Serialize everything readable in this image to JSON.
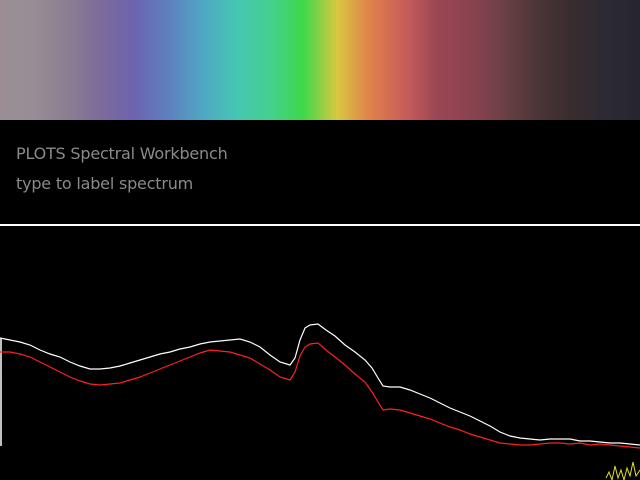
{
  "header": {
    "title": "PLOTS Spectral Workbench",
    "prompt": "type to label spectrum"
  },
  "colors": {
    "background": "#000000",
    "text": "#8a8a8a",
    "divider": "#ffffff",
    "trace_white": "#ffffff",
    "trace_red": "#ff2020",
    "trace_yellow": "#e0e020"
  },
  "spectrum_band": {
    "stops": [
      "#9a8e94",
      "#968d96",
      "#8a7f92",
      "#7d6a9a",
      "#6c64b0",
      "#5e80be",
      "#4fa6c4",
      "#45c6b4",
      "#44d090",
      "#3ed84a",
      "#d8c840",
      "#e0804a",
      "#c85e5a",
      "#9a4654",
      "#8a4250",
      "#6a4044",
      "#4a3436",
      "#382c2e",
      "#2c2a34",
      "#26262e"
    ]
  },
  "chart_data": {
    "type": "line",
    "series": [
      {
        "points": [
          [
            0,
            338
          ],
          [
            10,
            340
          ],
          [
            20,
            342
          ],
          [
            30,
            345
          ],
          [
            40,
            350
          ],
          [
            50,
            354
          ],
          [
            60,
            357
          ],
          [
            70,
            362
          ],
          [
            80,
            366
          ],
          [
            90,
            369
          ],
          [
            100,
            369
          ],
          [
            110,
            368
          ],
          [
            120,
            366
          ],
          [
            130,
            363
          ],
          [
            140,
            360
          ],
          [
            150,
            357
          ],
          [
            160,
            354
          ],
          [
            170,
            352
          ],
          [
            180,
            349
          ],
          [
            190,
            347
          ],
          [
            200,
            344
          ],
          [
            210,
            342
          ],
          [
            220,
            341
          ],
          [
            230,
            340
          ],
          [
            240,
            339
          ],
          [
            250,
            342
          ],
          [
            260,
            347
          ],
          [
            270,
            355
          ],
          [
            280,
            362
          ],
          [
            290,
            365
          ],
          [
            295,
            358
          ],
          [
            300,
            340
          ],
          [
            305,
            328
          ],
          [
            310,
            325
          ],
          [
            318,
            324
          ],
          [
            326,
            330
          ],
          [
            335,
            336
          ],
          [
            345,
            345
          ],
          [
            355,
            352
          ],
          [
            365,
            360
          ],
          [
            372,
            368
          ],
          [
            378,
            378
          ],
          [
            383,
            386
          ],
          [
            390,
            387
          ],
          [
            400,
            387
          ],
          [
            410,
            390
          ],
          [
            420,
            394
          ],
          [
            430,
            398
          ],
          [
            440,
            403
          ],
          [
            450,
            408
          ],
          [
            460,
            412
          ],
          [
            470,
            416
          ],
          [
            480,
            421
          ],
          [
            490,
            426
          ],
          [
            500,
            432
          ],
          [
            510,
            436
          ],
          [
            520,
            438
          ],
          [
            530,
            439
          ],
          [
            540,
            440
          ],
          [
            550,
            439
          ],
          [
            560,
            439
          ],
          [
            570,
            439
          ],
          [
            580,
            441
          ],
          [
            590,
            441
          ],
          [
            600,
            442
          ],
          [
            610,
            443
          ],
          [
            620,
            443
          ],
          [
            630,
            444
          ],
          [
            640,
            445
          ]
        ]
      },
      {
        "points": [
          [
            0,
            352
          ],
          [
            10,
            352
          ],
          [
            20,
            354
          ],
          [
            30,
            357
          ],
          [
            40,
            362
          ],
          [
            50,
            367
          ],
          [
            60,
            372
          ],
          [
            70,
            377
          ],
          [
            80,
            381
          ],
          [
            90,
            384
          ],
          [
            100,
            385
          ],
          [
            110,
            384
          ],
          [
            120,
            383
          ],
          [
            130,
            380
          ],
          [
            140,
            377
          ],
          [
            150,
            373
          ],
          [
            160,
            369
          ],
          [
            170,
            365
          ],
          [
            180,
            361
          ],
          [
            190,
            357
          ],
          [
            200,
            353
          ],
          [
            210,
            350
          ],
          [
            220,
            351
          ],
          [
            230,
            352
          ],
          [
            240,
            355
          ],
          [
            250,
            358
          ],
          [
            260,
            364
          ],
          [
            270,
            370
          ],
          [
            280,
            377
          ],
          [
            290,
            380
          ],
          [
            295,
            372
          ],
          [
            300,
            356
          ],
          [
            305,
            347
          ],
          [
            310,
            344
          ],
          [
            318,
            343
          ],
          [
            326,
            350
          ],
          [
            335,
            357
          ],
          [
            345,
            365
          ],
          [
            355,
            374
          ],
          [
            365,
            382
          ],
          [
            372,
            392
          ],
          [
            378,
            402
          ],
          [
            383,
            410
          ],
          [
            390,
            409
          ],
          [
            400,
            410
          ],
          [
            410,
            413
          ],
          [
            420,
            416
          ],
          [
            430,
            419
          ],
          [
            440,
            423
          ],
          [
            450,
            427
          ],
          [
            460,
            430
          ],
          [
            470,
            434
          ],
          [
            480,
            437
          ],
          [
            490,
            440
          ],
          [
            500,
            443
          ],
          [
            510,
            444
          ],
          [
            520,
            445
          ],
          [
            530,
            445
          ],
          [
            540,
            444
          ],
          [
            550,
            443
          ],
          [
            560,
            443
          ],
          [
            570,
            444
          ],
          [
            580,
            443
          ],
          [
            590,
            445
          ],
          [
            600,
            444
          ],
          [
            610,
            445
          ],
          [
            620,
            446
          ],
          [
            630,
            447
          ],
          [
            640,
            448
          ]
        ]
      },
      {
        "points": [
          [
            606,
            478
          ],
          [
            609,
            472
          ],
          [
            612,
            480
          ],
          [
            615,
            466
          ],
          [
            618,
            478
          ],
          [
            621,
            470
          ],
          [
            624,
            480
          ],
          [
            627,
            468
          ],
          [
            630,
            476
          ],
          [
            633,
            462
          ],
          [
            636,
            476
          ],
          [
            640,
            470
          ]
        ]
      }
    ]
  }
}
